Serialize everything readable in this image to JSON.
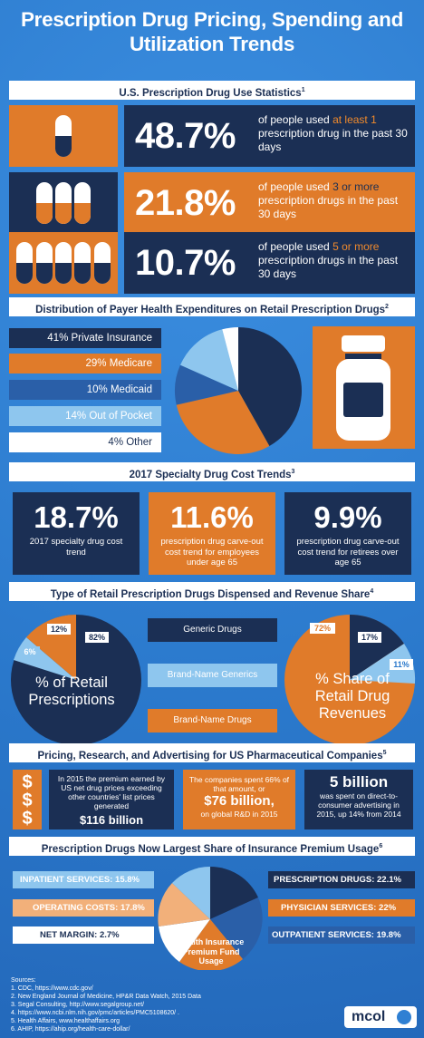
{
  "title": "Prescription Drug Pricing, Spending and Utilization Trends",
  "s1": {
    "heading": "U.S. Prescription Drug Use Statistics",
    "ref": "1",
    "rows": [
      {
        "pct": "48.7%",
        "pre": "of people used ",
        "hl": "at least 1",
        "post": " prescription drug in the past 30 days"
      },
      {
        "pct": "21.8%",
        "pre": "of people used ",
        "hl": "3 or more",
        "post": " prescription drugs in the past 30 days"
      },
      {
        "pct": "10.7%",
        "pre": "of people used ",
        "hl": "5 or more",
        "post": " prescription drugs in the past 30 days"
      }
    ]
  },
  "s2": {
    "heading": "Distribution of Payer Health Expenditures on Retail Prescription Drugs",
    "ref": "2",
    "items": [
      "41% Private Insurance",
      "29% Medicare",
      "10% Medicaid",
      "14% Out of Pocket",
      "4% Other"
    ],
    "shares": [
      41,
      29,
      10,
      14,
      4
    ],
    "colors": [
      "#1b2f54",
      "#e07b2a",
      "#2a5fa8",
      "#8ec6ee",
      "#ffffff"
    ]
  },
  "s3": {
    "heading": "2017 Specialty Drug Cost Trends",
    "ref": "3",
    "cards": [
      {
        "big": "18.7%",
        "small": "2017 specialty drug cost trend"
      },
      {
        "big": "11.6%",
        "small": "prescription drug carve-out cost trend for employees under age 65"
      },
      {
        "big": "9.9%",
        "small": "prescription drug carve-out cost trend for retirees over age 65"
      }
    ]
  },
  "s4": {
    "heading": "Type of Retail Prescription Drugs Dispensed and Revenue Share",
    "ref": "4",
    "labels": [
      "Generic Drugs",
      "Brand-Name Generics",
      "Brand-Name Drugs"
    ],
    "left_caption": "% of Retail Prescriptions",
    "right_caption": "% Share of Retail Drug Revenues",
    "left_values": {
      "generic": "82%",
      "brand_generic": "6%",
      "brand": "12%"
    },
    "right_values": {
      "generic": "17%",
      "brand_generic": "11%",
      "brand": "72%"
    }
  },
  "s5": {
    "heading": "Pricing, Research, and Advertising for US Pharmaceutical Companies",
    "ref": "5",
    "dollar": "$",
    "box1_text": "In 2015 the premium earned by US net drug prices exceeding other countries' list prices generated",
    "box1_big": "$116 billion",
    "box2_text": "The companies spent 66% of that amount, or",
    "box2_big": "$76 billion,",
    "box2_tail": "on global R&D in 2015",
    "box3_big": "5 billion",
    "box3_text": "was spent on direct-to-consumer advertising in 2015, up 14% from 2014"
  },
  "s6": {
    "heading": "Prescription Drugs Now Largest Share of Insurance Premium Usage",
    "ref": "6",
    "left": [
      "INPATIENT SERVICES: 15.8%",
      "OPERATING COSTS: 17.8%",
      "NET MARGIN: 2.7%"
    ],
    "right": [
      "PRESCRIPTION DRUGS: 22.1%",
      "PHYSICIAN SERVICES: 22%",
      "OUTPATIENT SERVICES: 19.8%"
    ],
    "center": "Health Insurance Premium Fund Usage"
  },
  "sources": {
    "label": "Sources:",
    "items": [
      "1.  CDC, https://www.cdc.gov/",
      "2.  New England Journal of Medicine, HP&R Data Watch, 2015 Data",
      "3.  Segal Consulting, http://www.segalgroup.net/",
      "4.  https://www.ncbi.nlm.nih.gov/pmc/articles/PMC5108620/ .",
      "5.  Health Affairs, www.healthaffairs.org",
      "6.  AHIP, https://ahip.org/health-care-dollar/"
    ]
  },
  "logo": "mcol"
}
